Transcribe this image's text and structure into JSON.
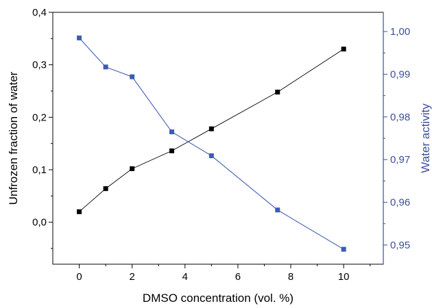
{
  "chart_data": {
    "type": "line",
    "xlabel": "DMSO concentration (vol. %)",
    "ylabel_left": "Unfrozen fraction of water",
    "ylabel_right": "Water activity",
    "x_ticks": [
      "0",
      "2",
      "4",
      "6",
      "8",
      "10"
    ],
    "y_left_ticks": [
      "0,0",
      "0,1",
      "0,2",
      "0,3",
      "0,4"
    ],
    "y_right_ticks": [
      "0,95",
      "0,96",
      "0,97",
      "0,98",
      "0,99",
      "1,00"
    ],
    "xlim": [
      -1.0,
      11.5
    ],
    "ylim_left": [
      -0.08,
      0.4
    ],
    "ylim_right": [
      0.9455,
      1.0045
    ],
    "grid": false,
    "colors": {
      "left_axis": "#000000",
      "right_axis": "#3c4d9a",
      "left_series": "#000000",
      "right_series": "#3f5bb0"
    },
    "series": [
      {
        "axis": "left",
        "marker": "square",
        "x": [
          0,
          1,
          2,
          3.5,
          5,
          7.5,
          10
        ],
        "values": [
          0.02,
          0.064,
          0.102,
          0.136,
          0.178,
          0.248,
          0.33
        ]
      },
      {
        "axis": "right",
        "marker": "square",
        "x": [
          0,
          1,
          2,
          3.5,
          5,
          7.5,
          10
        ],
        "values": [
          0.9985,
          0.9917,
          0.9894,
          0.9765,
          0.9709,
          0.9582,
          0.949
        ]
      }
    ]
  }
}
